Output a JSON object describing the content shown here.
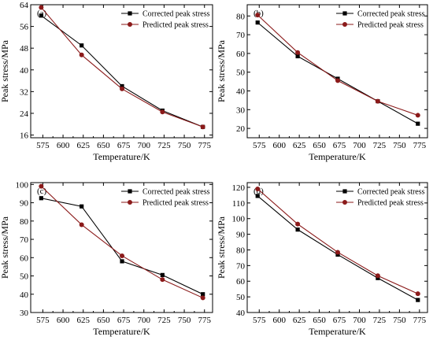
{
  "figure": {
    "panels_label": "peak stress vs temperature"
  },
  "chart_data": [
    {
      "type": "line",
      "panel_label": "(a)",
      "xlabel": "Temperature/K",
      "ylabel": "Peak stress/MPa",
      "xlim": [
        560,
        785
      ],
      "ylim": [
        15,
        64
      ],
      "xticks": [
        575,
        600,
        625,
        650,
        675,
        700,
        725,
        750,
        775
      ],
      "yticks": [
        16,
        24,
        32,
        40,
        48,
        56,
        64
      ],
      "legend_position": "top-right",
      "x": [
        573,
        623,
        673,
        723,
        773
      ],
      "series": [
        {
          "name": "Corrected peak stress",
          "color": "#000000",
          "marker": "square",
          "values": [
            60.0,
            49.0,
            34.0,
            25.0,
            19.0
          ]
        },
        {
          "name": "Predicted peak stress",
          "color": "#8b1a1a",
          "marker": "circle",
          "values": [
            63.0,
            45.5,
            33.0,
            24.5,
            19.0
          ]
        }
      ]
    },
    {
      "type": "line",
      "panel_label": "(b)",
      "xlabel": "Temperature/K",
      "ylabel": "Peak stress/MPa",
      "xlim": [
        560,
        785
      ],
      "ylim": [
        15,
        86
      ],
      "xticks": [
        575,
        600,
        625,
        650,
        675,
        700,
        725,
        750,
        775
      ],
      "yticks": [
        20,
        30,
        40,
        50,
        60,
        70,
        80
      ],
      "legend_position": "top-right",
      "x": [
        573,
        623,
        673,
        723,
        773
      ],
      "series": [
        {
          "name": "Corrected peak stress",
          "color": "#000000",
          "marker": "square",
          "values": [
            76.5,
            58.5,
            46.5,
            34.5,
            22.5
          ]
        },
        {
          "name": "Predicted peak stress",
          "color": "#8b1a1a",
          "marker": "circle",
          "values": [
            80.5,
            60.5,
            45.5,
            34.5,
            27.0
          ]
        }
      ]
    },
    {
      "type": "line",
      "panel_label": "(c)",
      "xlabel": "Temperature/K",
      "ylabel": "Peak stress/MPa",
      "xlim": [
        560,
        785
      ],
      "ylim": [
        30,
        101
      ],
      "xticks": [
        575,
        600,
        625,
        650,
        675,
        700,
        725,
        750,
        775
      ],
      "yticks": [
        30,
        40,
        50,
        60,
        70,
        80,
        90,
        100
      ],
      "legend_position": "top-right",
      "x": [
        573,
        623,
        673,
        723,
        773
      ],
      "series": [
        {
          "name": "Corrected peak stress",
          "color": "#000000",
          "marker": "square",
          "values": [
            92.5,
            88.0,
            58.0,
            50.5,
            40.0
          ]
        },
        {
          "name": "Predicted peak stress",
          "color": "#8b1a1a",
          "marker": "circle",
          "values": [
            99.0,
            78.0,
            61.0,
            48.0,
            38.0
          ]
        }
      ]
    },
    {
      "type": "line",
      "panel_label": "(d)",
      "xlabel": "Temperature/K",
      "ylabel": "Peak stress/MPa",
      "xlim": [
        560,
        785
      ],
      "ylim": [
        40,
        123
      ],
      "xticks": [
        575,
        600,
        625,
        650,
        675,
        700,
        725,
        750,
        775
      ],
      "yticks": [
        40,
        50,
        60,
        70,
        80,
        90,
        100,
        110,
        120
      ],
      "legend_position": "top-right",
      "x": [
        573,
        623,
        673,
        723,
        773
      ],
      "series": [
        {
          "name": "Corrected peak stress",
          "color": "#000000",
          "marker": "square",
          "values": [
            114.5,
            93.0,
            77.0,
            62.0,
            48.0
          ]
        },
        {
          "name": "Predicted peak stress",
          "color": "#8b1a1a",
          "marker": "circle",
          "values": [
            119.0,
            96.5,
            78.5,
            63.5,
            52.0
          ]
        }
      ]
    }
  ]
}
